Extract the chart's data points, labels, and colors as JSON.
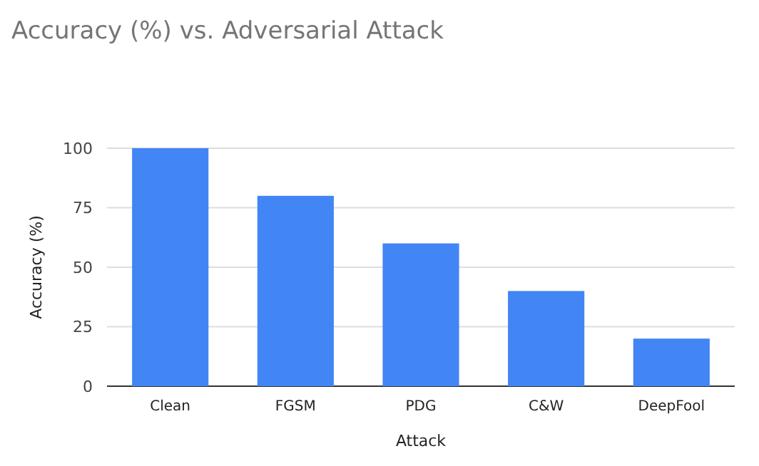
{
  "chart_data": {
    "type": "bar",
    "title": "Accuracy (%) vs. Adversarial Attack",
    "xlabel": "Attack",
    "ylabel": "Accuracy (%)",
    "categories": [
      "Clean",
      "FGSM",
      "PDG",
      "C&W",
      "DeepFool"
    ],
    "values": [
      100,
      80,
      60,
      40,
      20
    ],
    "color": "#4285f4",
    "ylim": [
      0,
      100
    ],
    "yticks": [
      0,
      25,
      50,
      75,
      100
    ],
    "grid": "y"
  }
}
